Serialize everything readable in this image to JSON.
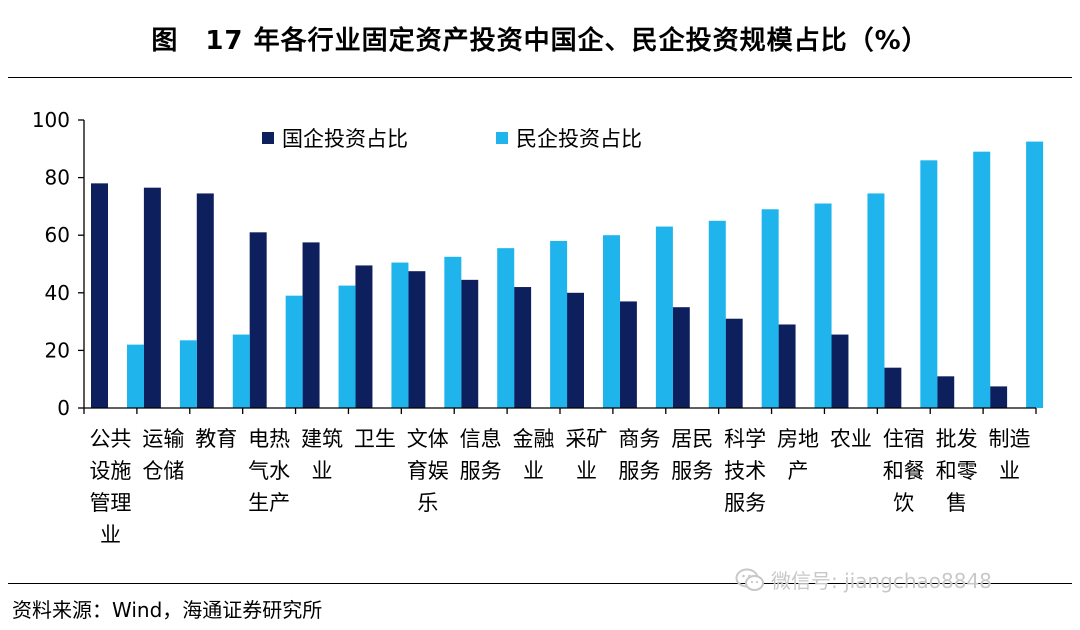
{
  "header": {
    "title": "图　17 年各行业固定资产投资中国企、民企投资规模占比（%）"
  },
  "footer": {
    "source": "资料来源：Wind，海通证券研究所"
  },
  "watermark": {
    "text": "微信号: jiangchao8848",
    "icon": "wechat-icon"
  },
  "colors": {
    "soe": "#0d1f5c",
    "private": "#1fb4ec"
  },
  "chart_data": {
    "type": "bar",
    "title": "图　17 年各行业固定资产投资中国企、民企投资规模占比（%）",
    "categories": [
      [
        "公共",
        "设施",
        "管理",
        "业"
      ],
      [
        "运输",
        "仓储"
      ],
      [
        "教育"
      ],
      [
        "电热",
        "气水",
        "生产"
      ],
      [
        "建筑",
        "业"
      ],
      [
        "卫生"
      ],
      [
        "文体",
        "育娱",
        "乐"
      ],
      [
        "信息",
        "服务"
      ],
      [
        "金融",
        "业"
      ],
      [
        "采矿",
        "业"
      ],
      [
        "商务",
        "服务"
      ],
      [
        "居民",
        "服务"
      ],
      [
        "科学",
        "技术",
        "服务"
      ],
      [
        "房地",
        "产"
      ],
      [
        "农业"
      ],
      [
        "住宿",
        "和餐",
        "饮"
      ],
      [
        "批发",
        "和零",
        "售"
      ],
      [
        "制造",
        "业"
      ]
    ],
    "series": [
      {
        "name": "国企投资占比",
        "values": [
          78,
          76.5,
          74.5,
          61,
          57.5,
          49.5,
          47.5,
          44.5,
          42,
          40,
          37,
          35,
          31,
          29,
          25.5,
          14,
          11,
          7.5
        ]
      },
      {
        "name": "民企投资占比",
        "values": [
          22,
          23.5,
          25.5,
          39,
          42.5,
          50.5,
          52.5,
          55.5,
          58,
          60,
          63,
          65,
          69,
          71,
          74.5,
          86,
          89,
          92.5
        ]
      }
    ],
    "ylim": [
      0,
      100
    ],
    "yticks": [
      0,
      20,
      40,
      60,
      80,
      100
    ],
    "legend_position": "top-left-inside",
    "grid": false
  }
}
